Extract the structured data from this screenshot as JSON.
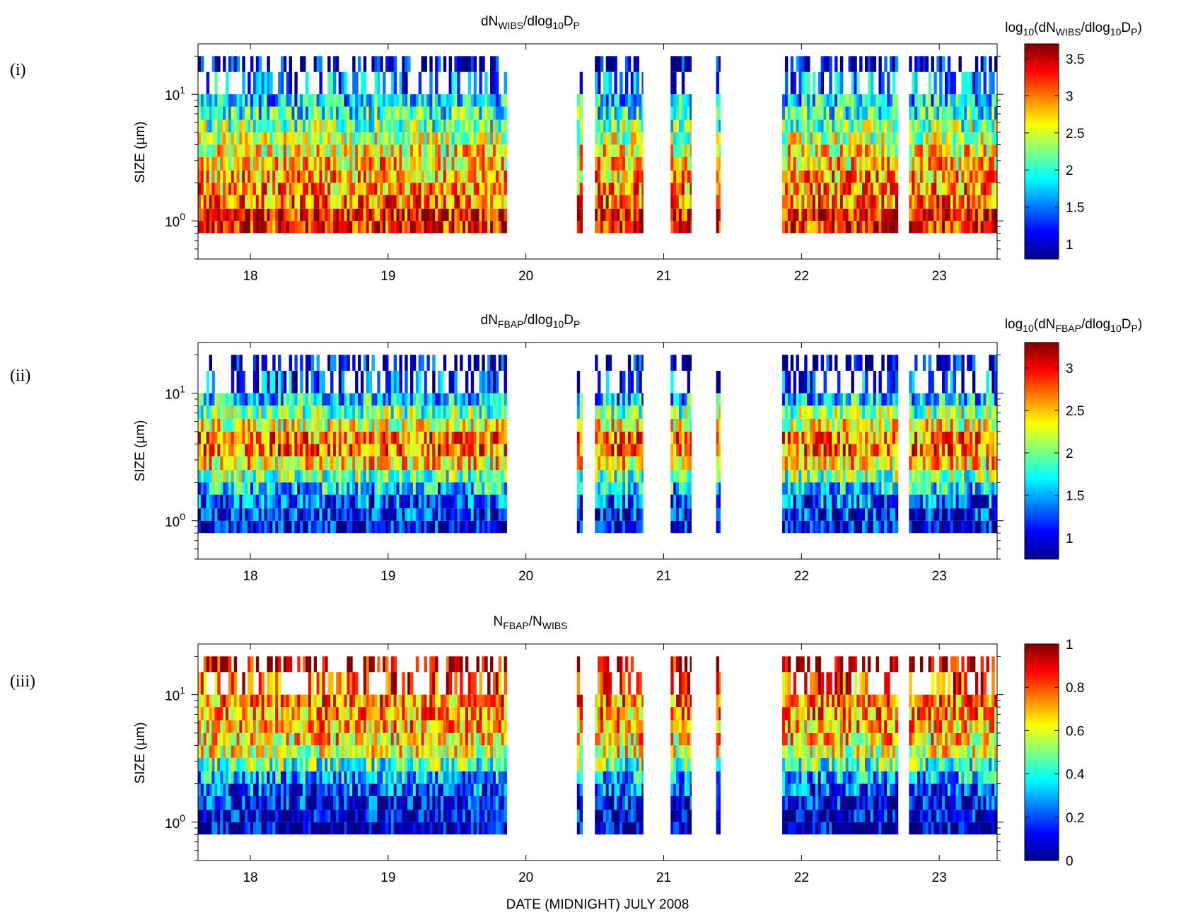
{
  "figure": {
    "xlabel": "DATE (MIDNIGHT) JULY 2008"
  },
  "chart_data": [
    {
      "type": "heatmap",
      "panel": "(i)",
      "title": {
        "pre": "dN",
        "sub1": "WIBS",
        "mid": "/dlog",
        "sub2": "10",
        "post": "D",
        "sub3": "P"
      },
      "ylabel": "SIZE (µm)",
      "xlim": [
        17.62,
        23.42
      ],
      "ylim_um": [
        0.5,
        25
      ],
      "y_scale": "log",
      "x_ticks": [
        18,
        19,
        20,
        21,
        22,
        23
      ],
      "y_ticks": [
        {
          "base": "10",
          "exp": "0",
          "value": 1
        },
        {
          "base": "10",
          "exp": "1",
          "value": 10
        }
      ],
      "size_bins_um": [
        0.8,
        1.0,
        1.25,
        1.6,
        2.0,
        2.5,
        3.2,
        4.0,
        5.0,
        6.3,
        8.0,
        10.0,
        15.0,
        20.0
      ],
      "data_segments": [
        [
          17.62,
          19.86
        ],
        [
          20.37,
          20.41
        ],
        [
          20.5,
          20.85
        ],
        [
          21.05,
          21.2
        ],
        [
          21.38,
          21.41
        ],
        [
          21.86,
          22.7
        ],
        [
          22.78,
          23.42
        ]
      ],
      "colorbar": {
        "label": {
          "pre": "log",
          "sub1": "10",
          "mid": "(dN",
          "sub2": "WIBS",
          "mid2": "/dlog",
          "sub3": "10",
          "post": "D",
          "sub4": "P",
          "end": ")"
        },
        "range": [
          0.8,
          3.7
        ],
        "ticks": [
          "1",
          "1.5",
          "2",
          "2.5",
          "3",
          "3.5"
        ],
        "tick_values": [
          1,
          1.5,
          2,
          2.5,
          3,
          3.5
        ]
      },
      "value_profile": [
        3.3,
        3.35,
        3.0,
        2.9,
        2.85,
        2.75,
        2.6,
        2.4,
        2.2,
        2.0,
        1.8,
        1.5,
        1.0,
        0.9
      ],
      "value_range": [
        0.8,
        3.7
      ]
    },
    {
      "type": "heatmap",
      "panel": "(ii)",
      "title": {
        "pre": "dN",
        "sub1": "FBAP",
        "mid": "/dlog",
        "sub2": "10",
        "post": "D",
        "sub3": "P"
      },
      "ylabel": "SIZE (µm)",
      "xlim": [
        17.62,
        23.42
      ],
      "ylim_um": [
        0.5,
        25
      ],
      "y_scale": "log",
      "x_ticks": [
        18,
        19,
        20,
        21,
        22,
        23
      ],
      "y_ticks": [
        {
          "base": "10",
          "exp": "0",
          "value": 1
        },
        {
          "base": "10",
          "exp": "1",
          "value": 10
        }
      ],
      "size_bins_um": [
        0.8,
        1.0,
        1.25,
        1.6,
        2.0,
        2.5,
        3.2,
        4.0,
        5.0,
        6.3,
        8.0,
        10.0,
        15.0,
        20.0
      ],
      "data_segments": [
        [
          17.62,
          19.86
        ],
        [
          20.37,
          20.41
        ],
        [
          20.5,
          20.85
        ],
        [
          21.05,
          21.2
        ],
        [
          21.38,
          21.41
        ],
        [
          21.86,
          22.7
        ],
        [
          22.78,
          23.42
        ]
      ],
      "colorbar": {
        "label": {
          "pre": "log",
          "sub1": "10",
          "mid": "(dN",
          "sub2": "FBAP",
          "mid2": "/dlog",
          "sub3": "10",
          "post": "D",
          "sub4": "P",
          "end": ")"
        },
        "range": [
          0.75,
          3.3
        ],
        "ticks": [
          "1",
          "1.5",
          "2",
          "2.5",
          "3"
        ],
        "tick_values": [
          1,
          1.5,
          2,
          2.5,
          3
        ]
      },
      "value_profile": [
        1.0,
        1.1,
        1.3,
        1.6,
        2.0,
        2.4,
        2.7,
        2.65,
        2.3,
        2.0,
        1.6,
        1.2,
        0.95,
        0.85
      ],
      "value_range": [
        0.75,
        3.3
      ]
    },
    {
      "type": "heatmap",
      "panel": "(iii)",
      "title": {
        "pre": "N",
        "sub1": "FBAP",
        "mid": "/N",
        "sub2": "WIBS"
      },
      "ylabel": "SIZE (µm)",
      "xlim": [
        17.62,
        23.42
      ],
      "ylim_um": [
        0.5,
        25
      ],
      "y_scale": "log",
      "x_ticks": [
        18,
        19,
        20,
        21,
        22,
        23
      ],
      "y_ticks": [
        {
          "base": "10",
          "exp": "0",
          "value": 1
        },
        {
          "base": "10",
          "exp": "1",
          "value": 10
        }
      ],
      "size_bins_um": [
        0.8,
        1.0,
        1.25,
        1.6,
        2.0,
        2.5,
        3.2,
        4.0,
        5.0,
        6.3,
        8.0,
        10.0,
        15.0,
        20.0
      ],
      "data_segments": [
        [
          17.62,
          19.86
        ],
        [
          20.37,
          20.41
        ],
        [
          20.5,
          20.85
        ],
        [
          21.05,
          21.2
        ],
        [
          21.38,
          21.41
        ],
        [
          21.86,
          22.7
        ],
        [
          22.78,
          23.42
        ]
      ],
      "colorbar": {
        "label": null,
        "range": [
          0,
          1
        ],
        "ticks": [
          "0",
          "0.2",
          "0.4",
          "0.6",
          "0.8",
          "1"
        ],
        "tick_values": [
          0,
          0.2,
          0.4,
          0.6,
          0.8,
          1
        ]
      },
      "value_profile": [
        0.05,
        0.08,
        0.12,
        0.2,
        0.3,
        0.45,
        0.6,
        0.65,
        0.7,
        0.72,
        0.75,
        0.8,
        0.95,
        0.98
      ],
      "value_range": [
        0,
        1
      ]
    }
  ]
}
